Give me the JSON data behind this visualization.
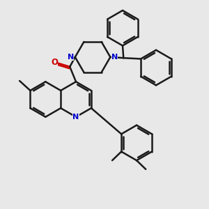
{
  "background_color": "#e8e8e8",
  "bond_color": "#1a1a1a",
  "nitrogen_color": "#0000cc",
  "oxygen_color": "#cc0000",
  "line_width": 1.8,
  "figsize": [
    3.0,
    3.0
  ],
  "dpi": 100,
  "xlim": [
    0,
    10
  ],
  "ylim": [
    0,
    10
  ]
}
